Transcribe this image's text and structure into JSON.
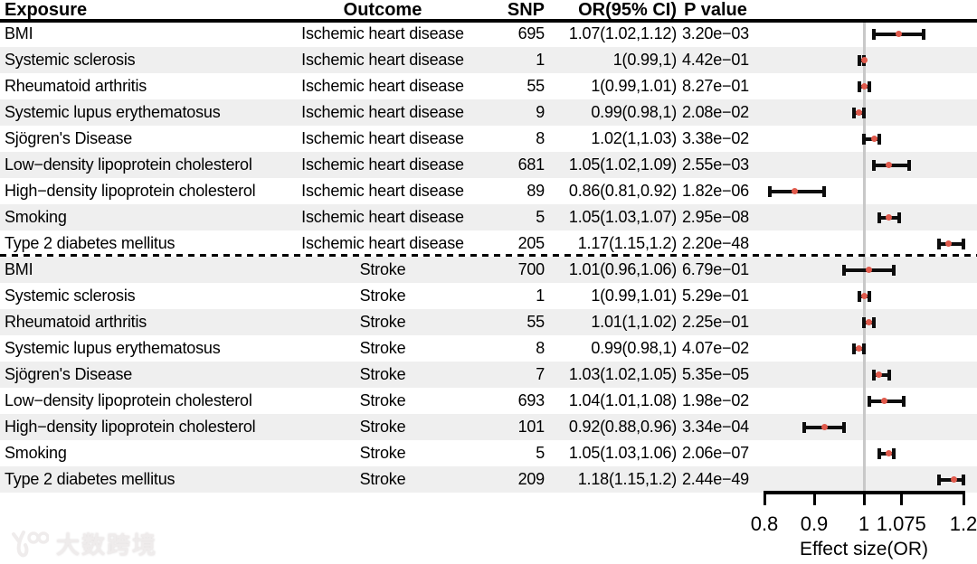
{
  "watermark": {
    "text": "大数跨境",
    "logo": "100-swoosh-logo"
  },
  "colors": {
    "stripe": "#efefef",
    "ci_bar": "#0d0d0d",
    "or_dot": "#e05a4c",
    "reference_line": "#c8c8c8",
    "axis": "#000000",
    "watermark": "#efecec"
  },
  "chart_data": {
    "type": "forest",
    "title": "",
    "xlabel": "Effect size(OR)",
    "xlim": [
      0.8,
      1.2
    ],
    "reference_line": 1,
    "grid": false,
    "x_ticks": {
      "labels": [
        "0.8",
        "0.9",
        "1",
        "1.075",
        "1.2"
      ],
      "values": [
        0.8,
        0.9,
        1,
        1.075,
        1.2
      ]
    },
    "columns": [
      "Exposure",
      "Outcome",
      "SNP",
      "OR(95% CI)",
      "P value"
    ],
    "section_separator_after_row": 9,
    "rows": [
      {
        "exposure": "BMI",
        "outcome": "Ischemic heart disease",
        "snp": "695",
        "or_ci": "1.07(1.02,1.12)",
        "p_value": "3.20e−03",
        "or": 1.07,
        "ci_low": 1.02,
        "ci_high": 1.12
      },
      {
        "exposure": "Systemic sclerosis",
        "outcome": "Ischemic heart disease",
        "snp": "1",
        "or_ci": "1(0.99,1)",
        "p_value": "4.42e−01",
        "or": 1.0,
        "ci_low": 0.99,
        "ci_high": 1.0
      },
      {
        "exposure": "Rheumatoid arthritis",
        "outcome": "Ischemic heart disease",
        "snp": "55",
        "or_ci": "1(0.99,1.01)",
        "p_value": "8.27e−01",
        "or": 1.0,
        "ci_low": 0.99,
        "ci_high": 1.01
      },
      {
        "exposure": "Systemic lupus erythematosus",
        "outcome": "Ischemic heart disease",
        "snp": "9",
        "or_ci": "0.99(0.98,1)",
        "p_value": "2.08e−02",
        "or": 0.99,
        "ci_low": 0.98,
        "ci_high": 1.0
      },
      {
        "exposure": "Sjögren's Disease",
        "outcome": "Ischemic heart disease",
        "snp": "8",
        "or_ci": "1.02(1,1.03)",
        "p_value": "3.38e−02",
        "or": 1.02,
        "ci_low": 1.0,
        "ci_high": 1.03
      },
      {
        "exposure": "Low−density lipoprotein cholesterol",
        "outcome": "Ischemic heart disease",
        "snp": "681",
        "or_ci": "1.05(1.02,1.09)",
        "p_value": "2.55e−03",
        "or": 1.05,
        "ci_low": 1.02,
        "ci_high": 1.09
      },
      {
        "exposure": "High−density lipoprotein cholesterol",
        "outcome": "Ischemic heart disease",
        "snp": "89",
        "or_ci": "0.86(0.81,0.92)",
        "p_value": "1.82e−06",
        "or": 0.86,
        "ci_low": 0.81,
        "ci_high": 0.92
      },
      {
        "exposure": "Smoking",
        "outcome": "Ischemic heart disease",
        "snp": "5",
        "or_ci": "1.05(1.03,1.07)",
        "p_value": "2.95e−08",
        "or": 1.05,
        "ci_low": 1.03,
        "ci_high": 1.07
      },
      {
        "exposure": "Type 2 diabetes mellitus",
        "outcome": "Ischemic heart disease",
        "snp": "205",
        "or_ci": "1.17(1.15,1.2)",
        "p_value": "2.20e−48",
        "or": 1.17,
        "ci_low": 1.15,
        "ci_high": 1.2
      },
      {
        "exposure": "BMI",
        "outcome": "Stroke",
        "snp": "700",
        "or_ci": "1.01(0.96,1.06)",
        "p_value": "6.79e−01",
        "or": 1.01,
        "ci_low": 0.96,
        "ci_high": 1.06
      },
      {
        "exposure": "Systemic sclerosis",
        "outcome": "Stroke",
        "snp": "1",
        "or_ci": "1(0.99,1.01)",
        "p_value": "5.29e−01",
        "or": 1.0,
        "ci_low": 0.99,
        "ci_high": 1.01
      },
      {
        "exposure": "Rheumatoid arthritis",
        "outcome": "Stroke",
        "snp": "55",
        "or_ci": "1.01(1,1.02)",
        "p_value": "2.25e−01",
        "or": 1.01,
        "ci_low": 1.0,
        "ci_high": 1.02
      },
      {
        "exposure": "Systemic lupus erythematosus",
        "outcome": "Stroke",
        "snp": "8",
        "or_ci": "0.99(0.98,1)",
        "p_value": "4.07e−02",
        "or": 0.99,
        "ci_low": 0.98,
        "ci_high": 1.0
      },
      {
        "exposure": "Sjögren's Disease",
        "outcome": "Stroke",
        "snp": "7",
        "or_ci": "1.03(1.02,1.05)",
        "p_value": "5.35e−05",
        "or": 1.03,
        "ci_low": 1.02,
        "ci_high": 1.05
      },
      {
        "exposure": "Low−density lipoprotein cholesterol",
        "outcome": "Stroke",
        "snp": "693",
        "or_ci": "1.04(1.01,1.08)",
        "p_value": "1.98e−02",
        "or": 1.04,
        "ci_low": 1.01,
        "ci_high": 1.08
      },
      {
        "exposure": "High−density lipoprotein cholesterol",
        "outcome": "Stroke",
        "snp": "101",
        "or_ci": "0.92(0.88,0.96)",
        "p_value": "3.34e−04",
        "or": 0.92,
        "ci_low": 0.88,
        "ci_high": 0.96
      },
      {
        "exposure": "Smoking",
        "outcome": "Stroke",
        "snp": "5",
        "or_ci": "1.05(1.03,1.06)",
        "p_value": "2.06e−07",
        "or": 1.05,
        "ci_low": 1.03,
        "ci_high": 1.06
      },
      {
        "exposure": "Type 2 diabetes mellitus",
        "outcome": "Stroke",
        "snp": "209",
        "or_ci": "1.18(1.15,1.2)",
        "p_value": "2.44e−49",
        "or": 1.18,
        "ci_low": 1.15,
        "ci_high": 1.2
      }
    ]
  }
}
